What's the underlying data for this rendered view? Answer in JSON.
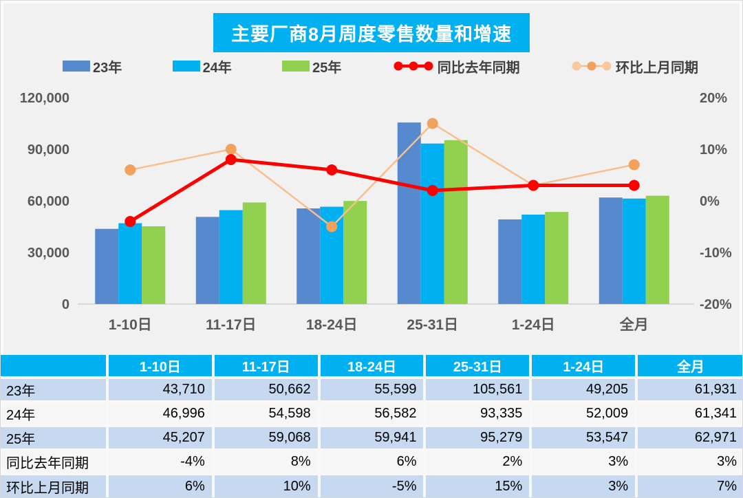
{
  "title": "主要厂商8月周度零售数量和增速",
  "colors": {
    "page_bg": "#F1F1F2",
    "title_bg": "#00B0F0",
    "bar_23": "#5689CE",
    "bar_24": "#00B0F0",
    "bar_25": "#92D050",
    "line_yoy": "#FE0000",
    "line_mom": "#F8BE8C",
    "dot_mom": "#F2A25C",
    "axis_text": "#595959",
    "axis_line": "#D9D9D9",
    "table_header_bg": "#00B0F0",
    "table_row_blue": "#C6D9F1",
    "table_row_light": "#F6F6F7"
  },
  "legend": {
    "items": [
      {
        "type": "bar",
        "label": "23年",
        "color_key": "bar_23"
      },
      {
        "type": "bar",
        "label": "24年",
        "color_key": "bar_24"
      },
      {
        "type": "bar",
        "label": "25年",
        "color_key": "bar_25"
      },
      {
        "type": "line",
        "label": "同比去年同期",
        "color_key": "line_yoy"
      },
      {
        "type": "line",
        "label": "环比上月同期",
        "color_key": "line_mom"
      }
    ]
  },
  "chart_data": {
    "type": "bar+line",
    "title": "主要厂商8月周度零售数量和增速",
    "categories": [
      "1-10日",
      "11-17日",
      "18-24日",
      "25-31日",
      "1-24日",
      "全月"
    ],
    "bar_series": [
      {
        "name": "23年",
        "color_key": "bar_23",
        "values": [
          43710,
          50662,
          55599,
          105561,
          49205,
          61931
        ]
      },
      {
        "name": "24年",
        "color_key": "bar_24",
        "values": [
          46996,
          54598,
          56582,
          93335,
          52009,
          61341
        ]
      },
      {
        "name": "25年",
        "color_key": "bar_25",
        "values": [
          45207,
          59068,
          59941,
          95279,
          53547,
          62971
        ]
      }
    ],
    "line_series": [
      {
        "name": "同比去年同期",
        "values_pct": [
          -4,
          8,
          6,
          2,
          3,
          3
        ],
        "stroke_key": "line_yoy",
        "dot_key": "line_yoy",
        "stroke_width": 5
      },
      {
        "name": "环比上月同期",
        "values_pct": [
          6,
          10,
          -5,
          15,
          3,
          7
        ],
        "stroke_key": "line_mom",
        "dot_key": "dot_mom",
        "stroke_width": 2.5
      }
    ],
    "y_left": {
      "min": 0,
      "max": 120000,
      "ticks_top_to_bottom": [
        "120,000",
        "90,000",
        "60,000",
        "30,000",
        "0"
      ]
    },
    "y_right": {
      "min": -20,
      "max": 20,
      "ticks_top_to_bottom": [
        "20%",
        "10%",
        "0%",
        "-10%",
        "-20%"
      ]
    },
    "grid": false,
    "legend_position": "top"
  },
  "table": {
    "col_headers": [
      "",
      "1-10日",
      "11-17日",
      "18-24日",
      "25-31日",
      "1-24日",
      "全月"
    ],
    "rows": [
      {
        "label": "23年",
        "cells": [
          "43,710",
          "50,662",
          "55,599",
          "105,561",
          "49,205",
          "61,931"
        ]
      },
      {
        "label": "24年",
        "cells": [
          "46,996",
          "54,598",
          "56,582",
          "93,335",
          "52,009",
          "61,341"
        ]
      },
      {
        "label": "25年",
        "cells": [
          "45,207",
          "59,068",
          "59,941",
          "95,279",
          "53,547",
          "62,971"
        ]
      },
      {
        "label": "同比去年同期",
        "cells": [
          "-4%",
          "8%",
          "6%",
          "2%",
          "3%",
          "3%"
        ]
      },
      {
        "label": "环比上月同期",
        "cells": [
          "6%",
          "10%",
          "-5%",
          "15%",
          "3%",
          "7%"
        ]
      }
    ]
  }
}
